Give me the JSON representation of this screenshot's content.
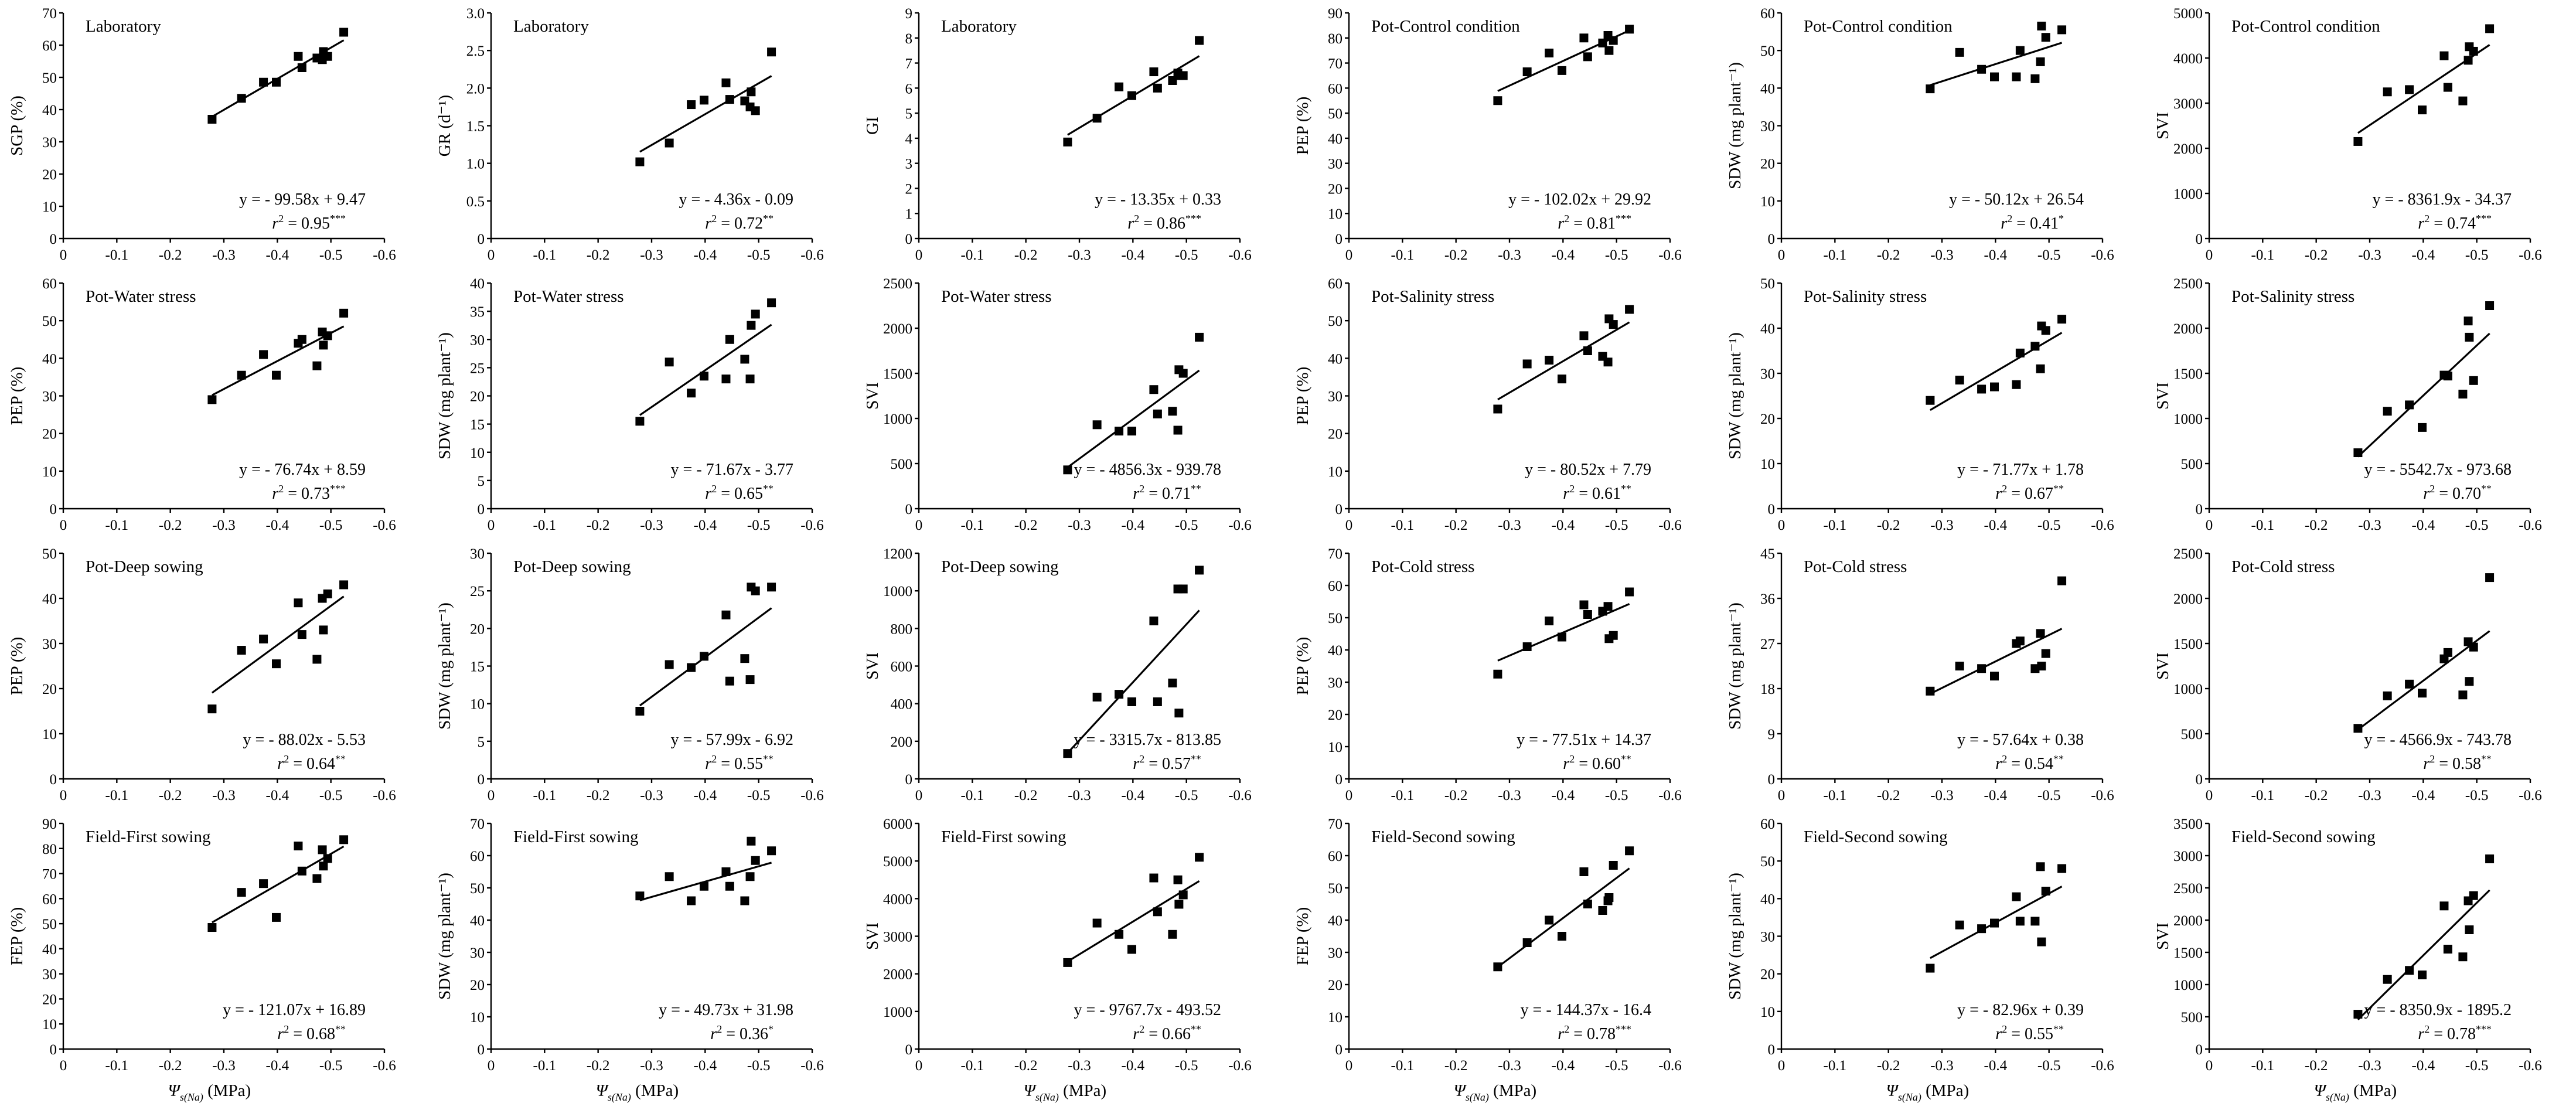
{
  "chart_data": {
    "type": "scatter",
    "layout": {
      "rows": 4,
      "cols": 6
    },
    "x_values": [
      -0.278,
      -0.333,
      -0.374,
      -0.398,
      -0.439,
      -0.446,
      -0.474,
      -0.484,
      -0.486,
      -0.494,
      -0.524
    ],
    "x_axis": {
      "label_main": "Ψ",
      "label_sub": "s(Na)",
      "label_unit": " (MPa)",
      "range": [
        0,
        -0.6
      ],
      "ticks": [
        "0",
        "-0.1",
        "-0.2",
        "-0.3",
        "-0.4",
        "-0.5",
        "-0.6"
      ]
    },
    "panels": [
      {
        "title": "Laboratory",
        "ylabel": "SGP (%)",
        "ylim": [
          0,
          70
        ],
        "yticks": [
          "0",
          "10",
          "20",
          "30",
          "40",
          "50",
          "60",
          "70"
        ],
        "y": [
          37,
          43.5,
          48.5,
          48.5,
          56.5,
          53,
          56,
          55.5,
          58,
          56.5,
          64
        ],
        "equation": "y = - 99.58x + 9.47",
        "r2_value": " = 0.95",
        "r2_sig": "***"
      },
      {
        "title": "Laboratory",
        "ylabel": "GR (d⁻¹)",
        "ylim": [
          0,
          3
        ],
        "yticks": [
          "0",
          "0.5",
          "1.0",
          "1.5",
          "2.0",
          "2.5",
          "3.0"
        ],
        "y": [
          1.02,
          1.27,
          1.78,
          1.84,
          2.07,
          1.85,
          1.83,
          1.75,
          1.95,
          1.7,
          2.48
        ],
        "equation": "y = - 4.36x - 0.09",
        "r2_value": " = 0.72",
        "r2_sig": "**"
      },
      {
        "title": "Laboratory",
        "ylabel": "GI",
        "ylim": [
          0,
          9
        ],
        "yticks": [
          "0",
          "1",
          "2",
          "3",
          "4",
          "5",
          "6",
          "7",
          "8",
          "9"
        ],
        "y": [
          3.85,
          4.8,
          6.05,
          5.7,
          6.65,
          6.0,
          6.3,
          6.6,
          6.5,
          6.5,
          7.9
        ],
        "equation": "y = - 13.35x + 0.33",
        "r2_value": " = 0.86",
        "r2_sig": "***"
      },
      {
        "title": "Pot-Control condition",
        "ylabel": "PEP (%)",
        "ylim": [
          0,
          90
        ],
        "yticks": [
          "0",
          "10",
          "20",
          "30",
          "40",
          "50",
          "60",
          "70",
          "80",
          "90"
        ],
        "y": [
          55,
          66.5,
          74,
          67,
          80,
          72.5,
          78,
          81,
          75,
          79,
          83.5
        ],
        "equation": "y = - 102.02x + 29.92",
        "r2_value": " = 0.81",
        "r2_sig": "***"
      },
      {
        "title": "Pot-Control condition",
        "ylabel": "SDW (mg plant⁻¹)",
        "ylim": [
          0,
          60
        ],
        "yticks": [
          "0",
          "10",
          "20",
          "30",
          "40",
          "50",
          "60"
        ],
        "y": [
          39.8,
          49.5,
          45,
          43,
          43,
          50,
          42.5,
          47,
          56.5,
          53.5,
          55.5
        ],
        "equation": "y = - 50.12x + 26.54",
        "r2_value": " = 0.41",
        "r2_sig": "*"
      },
      {
        "title": "Pot-Control condition",
        "ylabel": "SVI",
        "ylim": [
          0,
          5000
        ],
        "yticks": [
          "0",
          "1000",
          "2000",
          "3000",
          "4000",
          "5000"
        ],
        "y": [
          2150,
          3250,
          3300,
          2850,
          4050,
          3350,
          3050,
          3950,
          4250,
          4150,
          4650
        ],
        "equation": "y = - 8361.9x - 34.37",
        "r2_value": " = 0.74",
        "r2_sig": "***"
      },
      {
        "title": "Pot-Water stress",
        "ylabel": "PEP (%)",
        "ylim": [
          0,
          60
        ],
        "yticks": [
          "0",
          "10",
          "20",
          "30",
          "40",
          "50",
          "60"
        ],
        "y": [
          29,
          35.5,
          41,
          35.5,
          44,
          45,
          38,
          47,
          43.5,
          46,
          52
        ],
        "equation": "y = - 76.74x + 8.59",
        "r2_value": " = 0.73",
        "r2_sig": "***"
      },
      {
        "title": "Pot-Water stress",
        "ylabel": "SDW (mg plant⁻¹)",
        "ylim": [
          0,
          40
        ],
        "yticks": [
          "0",
          "5",
          "10",
          "15",
          "20",
          "25",
          "30",
          "35",
          "40"
        ],
        "y": [
          15.5,
          26,
          20.5,
          23.5,
          23,
          30,
          26.5,
          23,
          32.5,
          34.5,
          36.5
        ],
        "equation": "y = - 71.67x - 3.77",
        "r2_value": " = 0.65",
        "r2_sig": "**"
      },
      {
        "title": "Pot-Water stress",
        "ylabel": "SVI",
        "ylim": [
          0,
          2500
        ],
        "yticks": [
          "0",
          "500",
          "1000",
          "1500",
          "2000",
          "2500"
        ],
        "y": [
          430,
          930,
          860,
          860,
          1320,
          1050,
          1080,
          870,
          1540,
          1500,
          1900
        ],
        "equation": "y = - 4856.3x - 939.78",
        "r2_value": " = 0.71",
        "r2_sig": "**"
      },
      {
        "title": "Pot-Salinity stress",
        "ylabel": "PEP (%)",
        "ylim": [
          0,
          60
        ],
        "yticks": [
          "0",
          "10",
          "20",
          "30",
          "40",
          "50",
          "60"
        ],
        "y": [
          26.5,
          38.5,
          39.5,
          34.5,
          46,
          42,
          40.5,
          39,
          50.5,
          49,
          53
        ],
        "equation": "y = - 80.52x + 7.79",
        "r2_value": " = 0.61",
        "r2_sig": "**"
      },
      {
        "title": "Pot-Salinity stress",
        "ylabel": "SDW (mg plant⁻¹)",
        "ylim": [
          0,
          50
        ],
        "yticks": [
          "0",
          "10",
          "20",
          "30",
          "40",
          "50"
        ],
        "y": [
          24,
          28.5,
          26.5,
          27,
          27.5,
          34.5,
          36,
          31,
          40.5,
          39.5,
          42
        ],
        "equation": "y = - 71.77x + 1.78",
        "r2_value": " = 0.67",
        "r2_sig": "**"
      },
      {
        "title": "Pot-Salinity stress",
        "ylabel": "SVI",
        "ylim": [
          0,
          2500
        ],
        "yticks": [
          "0",
          "500",
          "1000",
          "1500",
          "2000",
          "2500"
        ],
        "y": [
          620,
          1080,
          1150,
          900,
          1480,
          1470,
          1270,
          2080,
          1900,
          1420,
          2250
        ],
        "equation": "y = - 5542.7x - 973.68",
        "r2_value": " = 0.70",
        "r2_sig": "**"
      },
      {
        "title": "Pot-Deep sowing",
        "ylabel": "PEP (%)",
        "ylim": [
          0,
          50
        ],
        "yticks": [
          "0",
          "10",
          "20",
          "30",
          "40",
          "50"
        ],
        "y": [
          15.5,
          28.5,
          31,
          25.5,
          39,
          32,
          26.5,
          40,
          33,
          41,
          43
        ],
        "equation": "y = - 88.02x - 5.53",
        "r2_value": " = 0.64",
        "r2_sig": "**"
      },
      {
        "title": "Pot-Deep sowing",
        "ylabel": "SDW (mg plant⁻¹)",
        "ylim": [
          0,
          30
        ],
        "yticks": [
          "0",
          "5",
          "10",
          "15",
          "20",
          "25",
          "30"
        ],
        "y": [
          9,
          15.2,
          14.8,
          16.3,
          21.8,
          13,
          16,
          13.2,
          25.5,
          25,
          25.5
        ],
        "equation": "y = - 57.99x - 6.92",
        "r2_value": " = 0.55",
        "r2_sig": "**"
      },
      {
        "title": "Pot-Deep sowing",
        "ylabel": "SVI",
        "ylim": [
          0,
          1200
        ],
        "yticks": [
          "0",
          "200",
          "400",
          "600",
          "800",
          "1000",
          "1200"
        ],
        "y": [
          135,
          435,
          450,
          410,
          840,
          410,
          510,
          1010,
          350,
          1010,
          1110
        ],
        "equation": "y = - 3315.7x - 813.85",
        "r2_value": " = 0.57",
        "r2_sig": "**"
      },
      {
        "title": "Pot-Cold stress",
        "ylabel": "PEP (%)",
        "ylim": [
          0,
          70
        ],
        "yticks": [
          "0",
          "10",
          "20",
          "30",
          "40",
          "50",
          "60",
          "70"
        ],
        "y": [
          32.5,
          41,
          49,
          44,
          54,
          51,
          52,
          53.5,
          43.5,
          44.5,
          58
        ],
        "equation": "y = - 77.51x + 14.37",
        "r2_value": " = 0.60",
        "r2_sig": "**"
      },
      {
        "title": "Pot-Cold stress",
        "ylabel": "SDW (mg plant⁻¹)",
        "ylim": [
          0,
          45
        ],
        "yticks": [
          "0",
          "9",
          "18",
          "27",
          "36",
          "45"
        ],
        "y": [
          17.5,
          22.5,
          22,
          20.5,
          27,
          27.5,
          22,
          29,
          22.5,
          25,
          39.5
        ],
        "equation": "y = - 57.64x + 0.38",
        "r2_value": " = 0.54",
        "r2_sig": "**"
      },
      {
        "title": "Pot-Cold stress",
        "ylabel": "SVI",
        "ylim": [
          0,
          2500
        ],
        "yticks": [
          "0",
          "500",
          "1000",
          "1500",
          "2000",
          "2500"
        ],
        "y": [
          560,
          920,
          1050,
          950,
          1330,
          1400,
          930,
          1520,
          1080,
          1460,
          2230
        ],
        "equation": "y = - 4566.9x - 743.78",
        "r2_value": " = 0.58",
        "r2_sig": "**"
      },
      {
        "title": "Field-First sowing",
        "ylabel": "FEP (%)",
        "ylim": [
          0,
          90
        ],
        "yticks": [
          "0",
          "10",
          "20",
          "30",
          "40",
          "50",
          "60",
          "70",
          "80",
          "90"
        ],
        "y": [
          48.5,
          62.5,
          66,
          52.5,
          81,
          71,
          68,
          79.5,
          73,
          76,
          83.5
        ],
        "equation": "y = - 121.07x + 16.89",
        "r2_value": " = 0.68",
        "r2_sig": "**"
      },
      {
        "title": "Field-First sowing",
        "ylabel": "SDW (mg plant⁻¹)",
        "ylim": [
          0,
          70
        ],
        "yticks": [
          "0",
          "10",
          "20",
          "30",
          "40",
          "50",
          "60",
          "70"
        ],
        "y": [
          47.5,
          53.5,
          46,
          50.5,
          55,
          50.5,
          46,
          53.5,
          64.5,
          58.5,
          61.5
        ],
        "equation": "y = - 49.73x + 31.98",
        "r2_value": " = 0.36",
        "r2_sig": "*"
      },
      {
        "title": "Field-First sowing",
        "ylabel": "SVI",
        "ylim": [
          0,
          6000
        ],
        "yticks": [
          "0",
          "1000",
          "2000",
          "3000",
          "4000",
          "5000",
          "6000"
        ],
        "y": [
          2300,
          3350,
          3050,
          2650,
          4550,
          3650,
          3050,
          4500,
          3850,
          4100,
          5100
        ],
        "equation": "y = - 9767.7x - 493.52",
        "r2_value": " = 0.66",
        "r2_sig": "**"
      },
      {
        "title": "Field-Second sowing",
        "ylabel": "FEP (%)",
        "ylim": [
          0,
          70
        ],
        "yticks": [
          "0",
          "10",
          "20",
          "30",
          "40",
          "50",
          "60",
          "70"
        ],
        "y": [
          25.5,
          33,
          40,
          35,
          55,
          45,
          43,
          46,
          47,
          57,
          61.5
        ],
        "equation": "y = - 144.37x - 16.4",
        "r2_value": " = 0.78",
        "r2_sig": "***"
      },
      {
        "title": "Field-Second sowing",
        "ylabel": "SDW (mg plant⁻¹)",
        "ylim": [
          0,
          60
        ],
        "yticks": [
          "0",
          "10",
          "20",
          "30",
          "40",
          "50",
          "60"
        ],
        "y": [
          21.5,
          33,
          32,
          33.5,
          40.5,
          34,
          34,
          48.5,
          28.5,
          42,
          48
        ],
        "equation": "y = - 82.96x + 0.39",
        "r2_value": " = 0.55",
        "r2_sig": "**"
      },
      {
        "title": "Field-Second sowing",
        "ylabel": "SVI",
        "ylim": [
          0,
          3500
        ],
        "yticks": [
          "0",
          "500",
          "1000",
          "1500",
          "2000",
          "2500",
          "3000",
          "3500"
        ],
        "y": [
          540,
          1080,
          1220,
          1150,
          2220,
          1550,
          1430,
          2300,
          1850,
          2380,
          2950
        ],
        "equation": "y = - 8350.9x - 1895.2",
        "r2_value": " = 0.78",
        "r2_sig": "***"
      }
    ]
  }
}
